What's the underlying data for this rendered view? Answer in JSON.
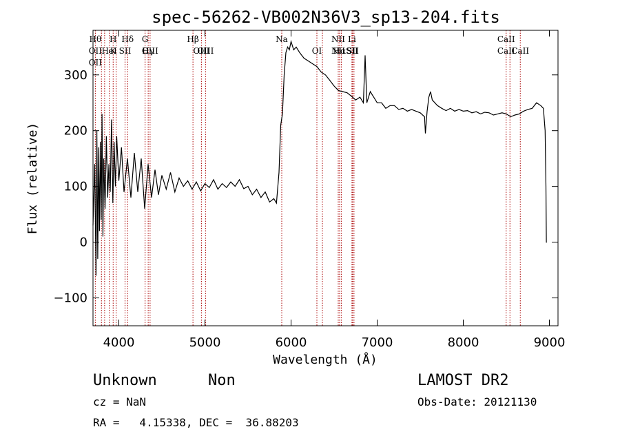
{
  "chart_data": {
    "type": "line",
    "title": "spec-56262-VB002N36V3_sp13-204.fits",
    "xlabel": "Wavelength (Å)",
    "ylabel": "Flux (relative)",
    "xlim": [
      3700,
      9100
    ],
    "ylim": [
      -150,
      380
    ],
    "x_ticks": [
      4000,
      5000,
      6000,
      7000,
      8000,
      9000
    ],
    "y_ticks": [
      -100,
      0,
      100,
      200,
      300
    ],
    "grid": false,
    "line_color": "#000000",
    "marker_color": "#aa0000",
    "spectrum": [
      [
        3700,
        30
      ],
      [
        3720,
        140
      ],
      [
        3735,
        -60
      ],
      [
        3745,
        200
      ],
      [
        3755,
        -30
      ],
      [
        3765,
        170
      ],
      [
        3775,
        20
      ],
      [
        3785,
        180
      ],
      [
        3795,
        40
      ],
      [
        3805,
        230
      ],
      [
        3815,
        10
      ],
      [
        3825,
        150
      ],
      [
        3840,
        60
      ],
      [
        3855,
        190
      ],
      [
        3870,
        80
      ],
      [
        3885,
        140
      ],
      [
        3900,
        90
      ],
      [
        3915,
        220
      ],
      [
        3930,
        70
      ],
      [
        3945,
        180
      ],
      [
        3960,
        100
      ],
      [
        3975,
        190
      ],
      [
        4000,
        110
      ],
      [
        4030,
        170
      ],
      [
        4060,
        90
      ],
      [
        4100,
        150
      ],
      [
        4140,
        80
      ],
      [
        4180,
        160
      ],
      [
        4220,
        90
      ],
      [
        4260,
        150
      ],
      [
        4300,
        60
      ],
      [
        4340,
        140
      ],
      [
        4380,
        80
      ],
      [
        4420,
        130
      ],
      [
        4460,
        85
      ],
      [
        4500,
        120
      ],
      [
        4550,
        95
      ],
      [
        4600,
        125
      ],
      [
        4650,
        90
      ],
      [
        4700,
        115
      ],
      [
        4750,
        100
      ],
      [
        4800,
        110
      ],
      [
        4850,
        95
      ],
      [
        4900,
        108
      ],
      [
        4950,
        92
      ],
      [
        5000,
        105
      ],
      [
        5050,
        98
      ],
      [
        5100,
        112
      ],
      [
        5150,
        95
      ],
      [
        5200,
        105
      ],
      [
        5250,
        98
      ],
      [
        5300,
        108
      ],
      [
        5350,
        100
      ],
      [
        5400,
        112
      ],
      [
        5450,
        96
      ],
      [
        5500,
        100
      ],
      [
        5550,
        85
      ],
      [
        5600,
        95
      ],
      [
        5650,
        80
      ],
      [
        5700,
        90
      ],
      [
        5750,
        72
      ],
      [
        5800,
        78
      ],
      [
        5830,
        70
      ],
      [
        5860,
        125
      ],
      [
        5880,
        210
      ],
      [
        5900,
        230
      ],
      [
        5920,
        300
      ],
      [
        5940,
        340
      ],
      [
        5960,
        350
      ],
      [
        5980,
        345
      ],
      [
        6000,
        360
      ],
      [
        6030,
        345
      ],
      [
        6060,
        350
      ],
      [
        6100,
        340
      ],
      [
        6150,
        330
      ],
      [
        6200,
        325
      ],
      [
        6250,
        320
      ],
      [
        6300,
        315
      ],
      [
        6350,
        305
      ],
      [
        6400,
        300
      ],
      [
        6450,
        290
      ],
      [
        6500,
        280
      ],
      [
        6550,
        272
      ],
      [
        6600,
        270
      ],
      [
        6650,
        268
      ],
      [
        6700,
        262
      ],
      [
        6750,
        255
      ],
      [
        6800,
        260
      ],
      [
        6840,
        250
      ],
      [
        6860,
        335
      ],
      [
        6880,
        250
      ],
      [
        6920,
        270
      ],
      [
        6960,
        260
      ],
      [
        7000,
        250
      ],
      [
        7050,
        250
      ],
      [
        7100,
        240
      ],
      [
        7150,
        245
      ],
      [
        7200,
        245
      ],
      [
        7250,
        238
      ],
      [
        7300,
        240
      ],
      [
        7350,
        235
      ],
      [
        7400,
        238
      ],
      [
        7450,
        235
      ],
      [
        7500,
        232
      ],
      [
        7550,
        225
      ],
      [
        7560,
        195
      ],
      [
        7580,
        235
      ],
      [
        7600,
        260
      ],
      [
        7620,
        270
      ],
      [
        7640,
        255
      ],
      [
        7700,
        245
      ],
      [
        7750,
        240
      ],
      [
        7800,
        236
      ],
      [
        7850,
        240
      ],
      [
        7900,
        235
      ],
      [
        7950,
        238
      ],
      [
        8000,
        235
      ],
      [
        8050,
        236
      ],
      [
        8100,
        232
      ],
      [
        8150,
        234
      ],
      [
        8200,
        230
      ],
      [
        8250,
        233
      ],
      [
        8300,
        232
      ],
      [
        8350,
        228
      ],
      [
        8400,
        230
      ],
      [
        8450,
        232
      ],
      [
        8500,
        230
      ],
      [
        8550,
        225
      ],
      [
        8600,
        228
      ],
      [
        8650,
        230
      ],
      [
        8700,
        235
      ],
      [
        8750,
        238
      ],
      [
        8800,
        240
      ],
      [
        8850,
        250
      ],
      [
        8900,
        245
      ],
      [
        8930,
        240
      ],
      [
        8950,
        200
      ],
      [
        8960,
        100
      ],
      [
        8965,
        0
      ],
      [
        8970,
        0
      ]
    ],
    "lines": [
      {
        "wave": 3727,
        "top": [
          "Hθ"
        ],
        "bottom": [
          "OII",
          "OII"
        ]
      },
      {
        "wave": 3798,
        "top": [],
        "bottom": []
      },
      {
        "wave": 3835,
        "top": [],
        "bottom": []
      },
      {
        "wave": 3889,
        "top": [],
        "bottom": [
          "HeI"
        ]
      },
      {
        "wave": 3934,
        "top": [
          "H"
        ],
        "bottom": [
          "K"
        ]
      },
      {
        "wave": 3969,
        "top": [],
        "bottom": []
      },
      {
        "wave": 4072,
        "top": [],
        "bottom": [
          "SII"
        ]
      },
      {
        "wave": 4102,
        "top": [
          "Hδ"
        ],
        "bottom": []
      },
      {
        "wave": 4305,
        "top": [
          "G"
        ],
        "bottom": []
      },
      {
        "wave": 4341,
        "top": [],
        "bottom": [
          "Hγ"
        ]
      },
      {
        "wave": 4363,
        "top": [],
        "bottom": [
          "OIII"
        ]
      },
      {
        "wave": 4861,
        "top": [
          "Hβ"
        ],
        "bottom": []
      },
      {
        "wave": 4959,
        "top": [],
        "bottom": [
          "OIII"
        ]
      },
      {
        "wave": 5007,
        "top": [],
        "bottom": [
          "OIII"
        ]
      },
      {
        "wave": 5892,
        "top": [
          "Na"
        ],
        "bottom": []
      },
      {
        "wave": 6300,
        "top": [],
        "bottom": [
          "OI"
        ]
      },
      {
        "wave": 6364,
        "top": [],
        "bottom": []
      },
      {
        "wave": 6548,
        "top": [
          "NII"
        ],
        "bottom": [
          "NII"
        ]
      },
      {
        "wave": 6563,
        "top": [],
        "bottom": [
          "Hα"
        ]
      },
      {
        "wave": 6583,
        "top": [],
        "bottom": []
      },
      {
        "wave": 6707,
        "top": [
          "Li"
        ],
        "bottom": [
          "SII"
        ]
      },
      {
        "wave": 6716,
        "top": [],
        "bottom": [
          "SII"
        ]
      },
      {
        "wave": 6731,
        "top": [],
        "bottom": []
      },
      {
        "wave": 8498,
        "top": [
          "CaII"
        ],
        "bottom": [
          "CaII"
        ]
      },
      {
        "wave": 8542,
        "top": [],
        "bottom": []
      },
      {
        "wave": 8662,
        "top": [],
        "bottom": [
          "CaII"
        ]
      }
    ]
  },
  "info": {
    "class_label": "Unknown",
    "subclass_label": "Non",
    "survey": "LAMOST DR2",
    "cz": "cz = NaN",
    "obs_date": "Obs-Date: 20121130",
    "coords": "RA =   4.15338, DEC =  36.88203"
  }
}
